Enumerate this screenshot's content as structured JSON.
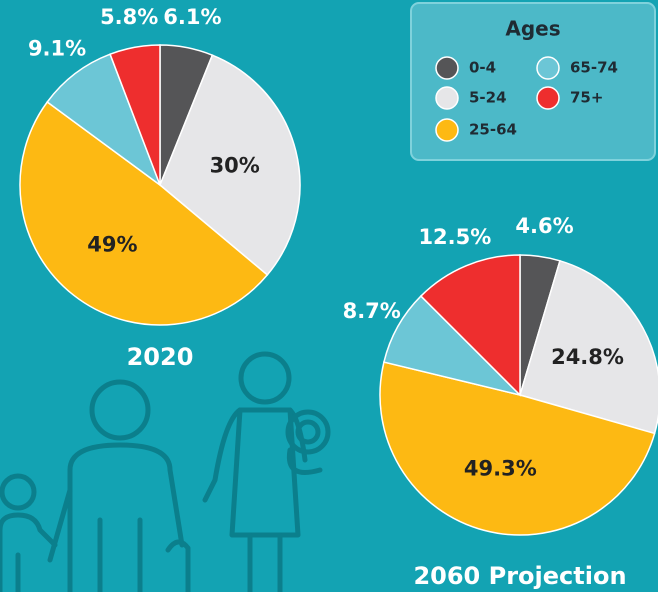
{
  "legend": {
    "title": "Ages"
  },
  "chart_data": [
    {
      "type": "pie",
      "title": "2020",
      "categories": [
        "0-4",
        "5-24",
        "25-64",
        "65-74",
        "75+"
      ],
      "values": [
        6.1,
        30,
        49,
        9.1,
        5.8
      ],
      "value_labels": [
        "6.1%",
        "30%",
        "49%",
        "9.1%",
        "5.8%"
      ],
      "colors": [
        "#555557",
        "#e6e6e8",
        "#fdb913",
        "#6cc6d6",
        "#ee2e2e"
      ]
    },
    {
      "type": "pie",
      "title": "2060 Projection",
      "categories": [
        "0-4",
        "5-24",
        "25-64",
        "65-74",
        "75+"
      ],
      "values": [
        4.6,
        24.8,
        49.3,
        8.7,
        12.5
      ],
      "value_labels": [
        "4.6%",
        "24.8%",
        "49.3%",
        "8.7%",
        "12.5%"
      ],
      "colors": [
        "#555557",
        "#e6e6e8",
        "#fdb913",
        "#6cc6d6",
        "#ee2e2e"
      ]
    }
  ]
}
